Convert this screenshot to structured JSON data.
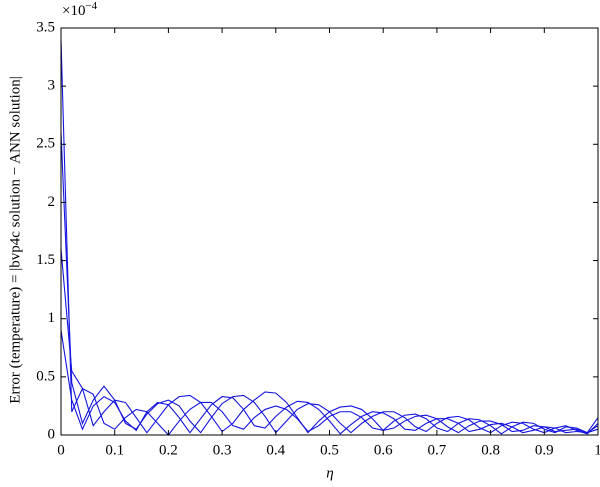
{
  "chart_data": {
    "type": "line",
    "y_label": "Error (temperature) = |bvp4c solution − ANN solution|",
    "x_label": "η",
    "y_multiplier": {
      "base": "×10",
      "exponent": "−4"
    },
    "xlim": [
      0,
      1
    ],
    "ylim": [
      0,
      3.5
    ],
    "xticks": [
      0,
      0.1,
      0.2,
      0.3,
      0.4,
      0.5,
      0.6,
      0.7,
      0.8,
      0.9,
      1
    ],
    "yticks": [
      0,
      0.5,
      1,
      1.5,
      2,
      2.5,
      3,
      3.5
    ],
    "grid": false,
    "x": [
      0,
      0.02,
      0.04,
      0.06,
      0.08,
      0.1,
      0.12,
      0.14,
      0.16,
      0.18,
      0.2,
      0.22,
      0.24,
      0.26,
      0.28,
      0.3,
      0.32,
      0.34,
      0.36,
      0.38,
      0.4,
      0.42,
      0.44,
      0.46,
      0.48,
      0.5,
      0.52,
      0.54,
      0.56,
      0.58,
      0.6,
      0.62,
      0.64,
      0.66,
      0.68,
      0.7,
      0.72,
      0.74,
      0.76,
      0.78,
      0.8,
      0.82,
      0.84,
      0.86,
      0.88,
      0.9,
      0.92,
      0.94,
      0.96,
      0.98,
      1
    ],
    "series": [
      {
        "color": "#1414e0",
        "values": [
          3.4,
          0.2,
          0.4,
          0.35,
          0.1,
          0.05,
          0.15,
          0.22,
          0.2,
          0.1,
          0,
          0.12,
          0.22,
          0.28,
          0.28,
          0.2,
          0.08,
          0.05,
          0.15,
          0.22,
          0.25,
          0.22,
          0.14,
          0.03,
          0.08,
          0.16,
          0.2,
          0.2,
          0.15,
          0.06,
          0.04,
          0.12,
          0.17,
          0.18,
          0.14,
          0.06,
          0.03,
          0.1,
          0.14,
          0.13,
          0.08,
          0.01,
          0.07,
          0.11,
          0.1,
          0.05,
          0.02,
          0.07,
          0.06,
          0.02,
          0.15
        ]
      },
      {
        "color": "#1414e0",
        "values": [
          2.6,
          0.45,
          0.1,
          0.3,
          0.42,
          0.3,
          0.1,
          0.05,
          0.18,
          0.27,
          0.3,
          0.25,
          0.12,
          0.02,
          0.15,
          0.27,
          0.33,
          0.34,
          0.28,
          0.16,
          0.02,
          0.12,
          0.22,
          0.27,
          0.26,
          0.2,
          0.1,
          0.02,
          0.1,
          0.16,
          0.2,
          0.2,
          0.15,
          0.07,
          0.03,
          0.1,
          0.15,
          0.16,
          0.13,
          0.06,
          0.02,
          0.08,
          0.11,
          0.1,
          0.05,
          0.02,
          0.06,
          0.08,
          0.04,
          0.01,
          0.1
        ]
      },
      {
        "color": "#1414e0",
        "values": [
          1.6,
          0.55,
          0.4,
          0.08,
          0.2,
          0.3,
          0.28,
          0.15,
          0.02,
          0.14,
          0.26,
          0.33,
          0.34,
          0.28,
          0.16,
          0.03,
          0.1,
          0.22,
          0.3,
          0.37,
          0.36,
          0.28,
          0.15,
          0.02,
          0.12,
          0.2,
          0.24,
          0.25,
          0.22,
          0.14,
          0.04,
          0.06,
          0.12,
          0.16,
          0.17,
          0.14,
          0.07,
          0.02,
          0.08,
          0.12,
          0.12,
          0.09,
          0.03,
          0.04,
          0.08,
          0.07,
          0.03,
          0.04,
          0.05,
          0.02,
          0.05
        ]
      },
      {
        "color": "#1414e0",
        "values": [
          0.9,
          0.3,
          0.05,
          0.25,
          0.33,
          0.28,
          0.12,
          0.04,
          0.2,
          0.28,
          0.26,
          0.15,
          0.02,
          0.14,
          0.26,
          0.33,
          0.32,
          0.22,
          0.08,
          0.06,
          0.16,
          0.24,
          0.29,
          0.28,
          0.22,
          0.12,
          0.01,
          0.09,
          0.16,
          0.2,
          0.19,
          0.14,
          0.05,
          0.04,
          0.1,
          0.14,
          0.14,
          0.1,
          0.03,
          0.05,
          0.09,
          0.1,
          0.07,
          0.02,
          0.04,
          0.07,
          0.06,
          0.02,
          0.03,
          0.02,
          0.08
        ]
      }
    ]
  }
}
